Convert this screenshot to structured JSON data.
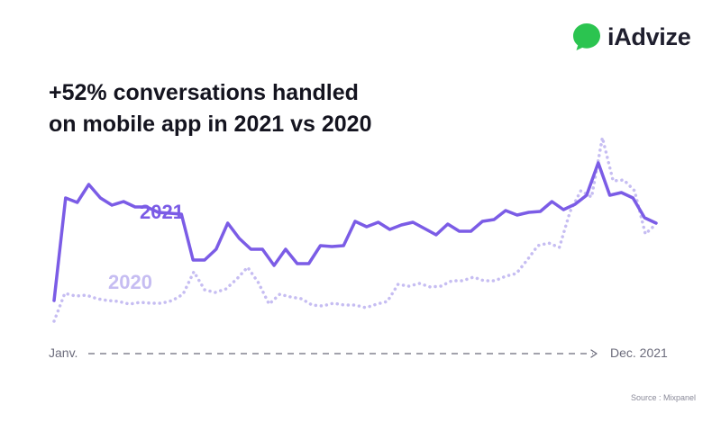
{
  "brand": {
    "name": "iAdvize",
    "logo_icon": "chat-bubble-icon",
    "logo_color": "#2bc450"
  },
  "headline": {
    "line1": "+52% conversations handled",
    "line2": "on mobile app in 2021 vs 2020"
  },
  "source": "Source : Mixpanel",
  "colors": {
    "series_2021": "#7b5ce6",
    "series_2020": "#c6bdf2",
    "axis": "#6b6b7b"
  },
  "chart_data": {
    "type": "line",
    "title": "+52% conversations handled on mobile app in 2021 vs 2020",
    "x_start_label": "Janv.",
    "x_end_label": "Dec. 2021",
    "grid": false,
    "series": [
      {
        "name": "2021",
        "style": "solid",
        "values": [
          63,
          177,
          172,
          192,
          177,
          169,
          173,
          167,
          167,
          161,
          160,
          159,
          108,
          108,
          120,
          149,
          132,
          120,
          120,
          102,
          120,
          104,
          104,
          124,
          123,
          124,
          151,
          145,
          150,
          142,
          147,
          150,
          143,
          136,
          148,
          140,
          140,
          151,
          153,
          163,
          158,
          161,
          162,
          173,
          164,
          170,
          180,
          216,
          180,
          183,
          177,
          155,
          149
        ]
      },
      {
        "name": "2020",
        "style": "dotted",
        "values": [
          40,
          71,
          68,
          69,
          65,
          63,
          62,
          59,
          61,
          60,
          60,
          63,
          70,
          95,
          75,
          72,
          76,
          87,
          100,
          83,
          59,
          70,
          67,
          65,
          58,
          57,
          60,
          58,
          58,
          55,
          59,
          62,
          81,
          79,
          82,
          78,
          79,
          85,
          85,
          89,
          85,
          85,
          90,
          93,
          108,
          124,
          127,
          122,
          162,
          185,
          178,
          244,
          196,
          197,
          185,
          137,
          148
        ]
      }
    ]
  }
}
